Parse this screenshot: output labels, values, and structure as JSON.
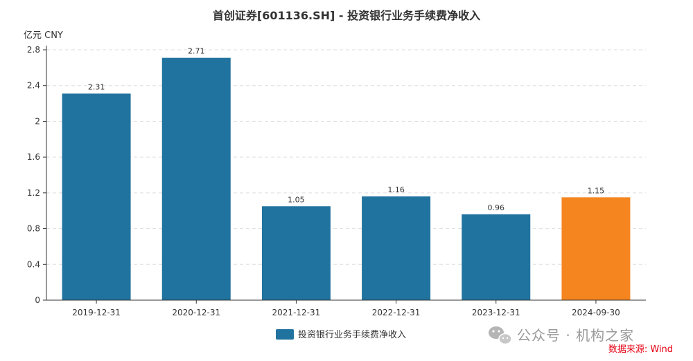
{
  "chart_data": {
    "type": "bar",
    "title": "首创证券[601136.SH] - 投资银行业务手续费净收入",
    "unit_label": "亿元  CNY",
    "categories": [
      "2019-12-31",
      "2020-12-31",
      "2021-12-31",
      "2022-12-31",
      "2023-12-31",
      "2024-09-30"
    ],
    "series": [
      {
        "name": "投资银行业务手续费净收入",
        "values": [
          2.31,
          2.71,
          1.05,
          1.16,
          0.96,
          1.15
        ],
        "data_labels": [
          "2.31",
          "2.71",
          "1.05",
          "1.16",
          "0.96",
          "1.15"
        ]
      }
    ],
    "ylim": [
      0,
      2.8
    ],
    "yticks": [
      "0",
      "0.4",
      "0.8",
      "1.2",
      "1.6",
      "2",
      "2.4",
      "2.8"
    ],
    "ytick_values": [
      0,
      0.4,
      0.8,
      1.2,
      1.6,
      2,
      2.4,
      2.8
    ],
    "grid": true,
    "legend_position": "bottom-center",
    "colors": {
      "bar": "#21739f",
      "highlight": "#f5861f",
      "grid": "#dddddd",
      "axis": "#333333"
    },
    "highlight_index": 5
  },
  "watermark": {
    "text": "公众号 · 机构之家",
    "icon": "wechat-icon"
  },
  "source": "数据来源: Wind"
}
